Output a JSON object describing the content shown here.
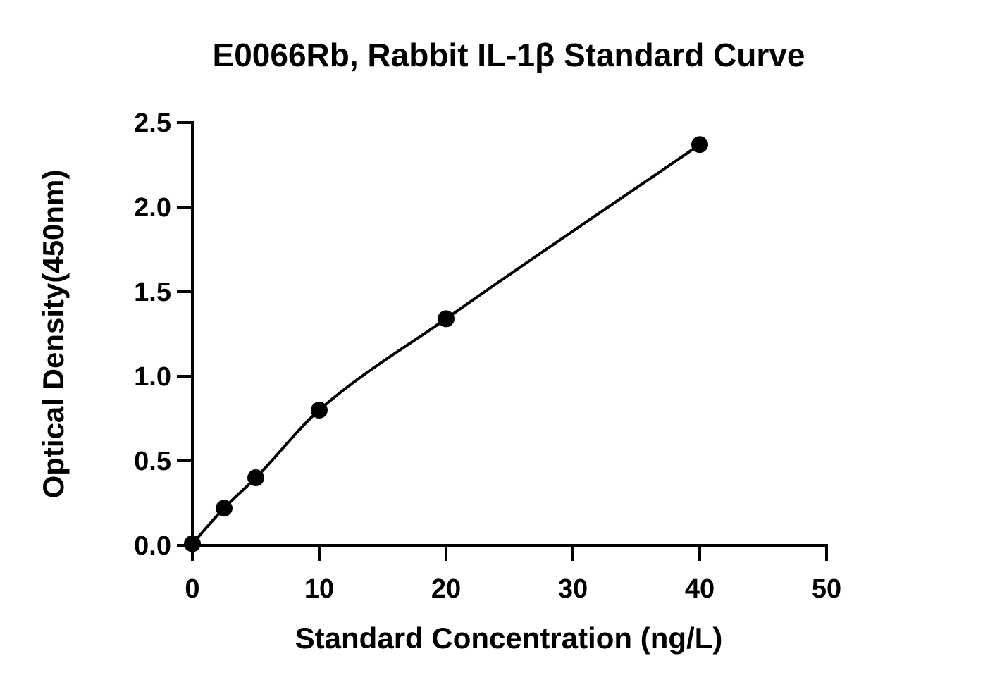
{
  "chart_data": {
    "type": "scatter",
    "title": "E0066Rb, Rabbit IL-1β Standard Curve",
    "xlabel": "Standard Concentration (ng/L)",
    "ylabel": "Optical Density(450nm)",
    "xlim": [
      0,
      50
    ],
    "ylim": [
      0,
      2.5
    ],
    "x_ticks": [
      0,
      10,
      20,
      30,
      40,
      50
    ],
    "x_tick_labels": [
      "0",
      "10",
      "20",
      "30",
      "40",
      "50"
    ],
    "y_ticks": [
      0,
      0.5,
      1.0,
      1.5,
      2.0,
      2.5
    ],
    "y_tick_labels": [
      "0.0",
      "0.5",
      "1.0",
      "1.5",
      "2.0",
      "2.5"
    ],
    "grid": false,
    "legend": "none",
    "series": [
      {
        "x": [
          0,
          2.5,
          5,
          10,
          20,
          40
        ],
        "y": [
          0.01,
          0.22,
          0.4,
          0.8,
          1.34,
          2.37
        ],
        "fit_curve": true
      }
    ],
    "colors": {
      "points": "#000000",
      "curve": "#000000",
      "axes": "#000000"
    }
  }
}
